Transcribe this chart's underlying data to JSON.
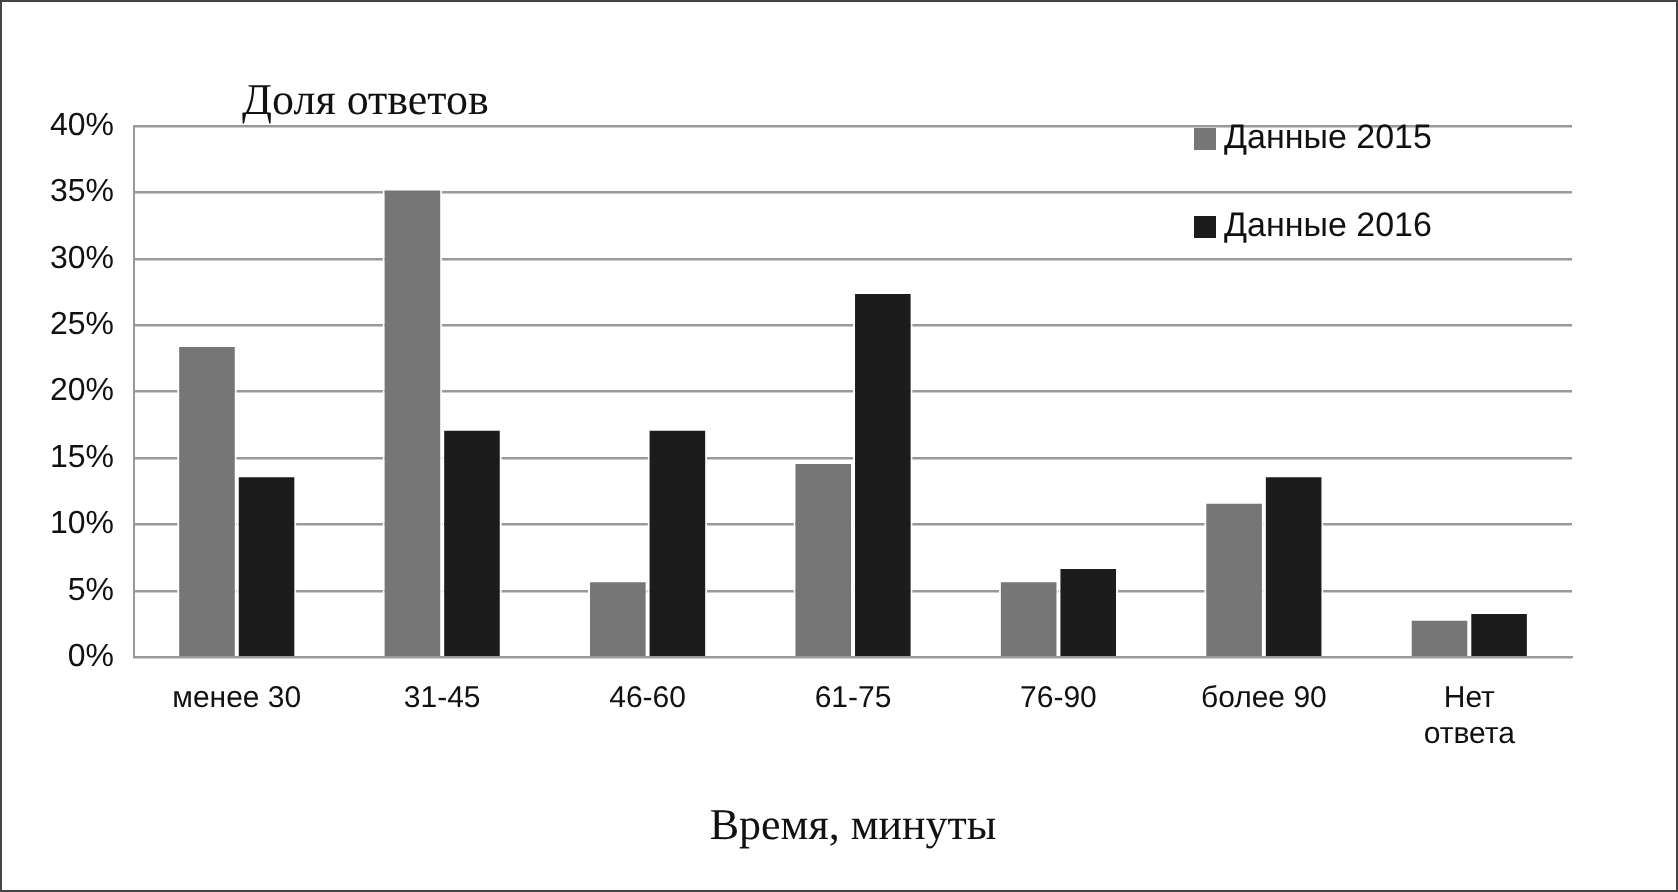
{
  "chart_data": {
    "type": "bar",
    "title": "Доля ответов",
    "xlabel": "Время, минуты",
    "categories": [
      "менее 30",
      "31-45",
      "46-60",
      "61-75",
      "76-90",
      "более 90",
      "Нет ответа"
    ],
    "series": [
      {
        "name": "Данные 2015",
        "color": "#767676",
        "values": [
          23.5,
          35.3,
          5.8,
          14.7,
          5.8,
          11.7,
          2.9
        ]
      },
      {
        "name": "Данные 2016",
        "color": "#1c1c1c",
        "values": [
          13.7,
          17.2,
          17.2,
          27.5,
          6.8,
          13.7,
          3.4
        ]
      }
    ],
    "ylim": [
      0,
      40
    ],
    "yticks": [
      {
        "value": 0,
        "label": "0%"
      },
      {
        "value": 5,
        "label": "5%"
      },
      {
        "value": 10,
        "label": "10%"
      },
      {
        "value": 15,
        "label": "15%"
      },
      {
        "value": 20,
        "label": "20%"
      },
      {
        "value": 25,
        "label": "25%"
      },
      {
        "value": 30,
        "label": "30%"
      },
      {
        "value": 35,
        "label": "35%"
      },
      {
        "value": 40,
        "label": "40%"
      }
    ],
    "grid": "y",
    "legend": "top right"
  }
}
